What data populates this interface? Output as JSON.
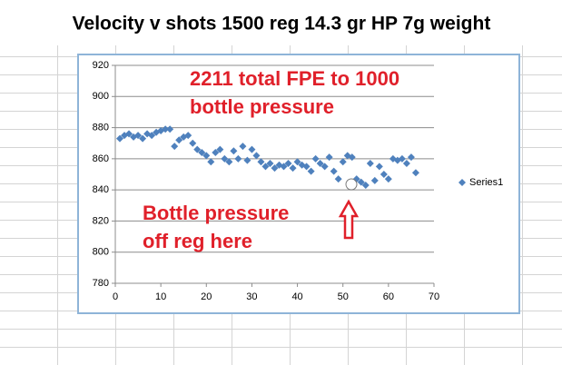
{
  "chart_data": {
    "type": "scatter",
    "title": "Velocity v shots 1500 reg 14.3 gr HP  7g weight",
    "annotations": [
      [
        "2211 total FPE to 1000",
        "bottle pressure"
      ],
      [
        "Bottle pressure",
        "off reg here"
      ]
    ],
    "x": [
      1,
      2,
      3,
      4,
      5,
      6,
      7,
      8,
      9,
      10,
      11,
      12,
      13,
      14,
      15,
      16,
      17,
      18,
      19,
      20,
      21,
      22,
      23,
      24,
      25,
      26,
      27,
      28,
      29,
      30,
      31,
      32,
      33,
      34,
      35,
      36,
      37,
      38,
      39,
      40,
      41,
      42,
      43,
      44,
      45,
      46,
      47,
      48,
      49,
      50,
      51,
      52,
      53,
      54,
      55,
      56,
      57,
      58,
      59,
      60,
      61,
      62,
      63,
      64,
      65,
      66
    ],
    "series": [
      {
        "name": "Series1",
        "color": "#4f81bd",
        "values": [
          873,
          875,
          876,
          874,
          875,
          873,
          876,
          875,
          877,
          878,
          879,
          879,
          868,
          872,
          874,
          875,
          870,
          866,
          864,
          862,
          858,
          864,
          866,
          860,
          858,
          865,
          860,
          868,
          859,
          866,
          862,
          858,
          855,
          857,
          854,
          856,
          855,
          857,
          854,
          858,
          856,
          855,
          852,
          860,
          857,
          855,
          861,
          852,
          847,
          858,
          862,
          861,
          847,
          845,
          843,
          857,
          846,
          855,
          850,
          847,
          860,
          859,
          860,
          857,
          861,
          851
        ]
      }
    ],
    "xlim": [
      0,
      70
    ],
    "xticks": [
      0,
      10,
      20,
      30,
      40,
      50,
      60,
      70
    ],
    "ylim": [
      780,
      920
    ],
    "yticks": [
      780,
      800,
      820,
      840,
      860,
      880,
      900,
      920
    ],
    "grid": true,
    "legend": "right"
  }
}
